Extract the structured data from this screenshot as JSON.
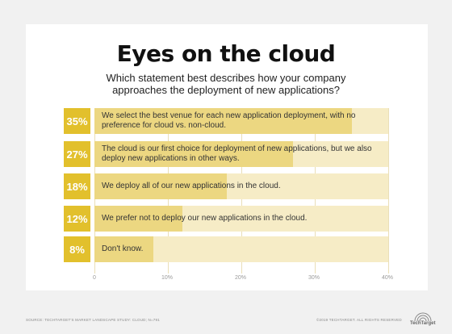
{
  "colors": {
    "accent": "#e2c02c",
    "bar": "#ecd781",
    "track": "#f6ecc6"
  },
  "chart_data": {
    "type": "bar",
    "orientation": "horizontal",
    "title": "Eyes on the cloud",
    "subtitle": "Which statement best describes how your company approaches the deployment of new applications?",
    "categories": [
      "We select the best venue for each new application deployment, with no preference for cloud vs. non-cloud.",
      "The cloud is our first choice for deployment of new applications, but we also deploy new applications in other ways.",
      "We deploy all of our new applications in the cloud.",
      "We prefer not to deploy our new applications in the cloud.",
      "Don't know."
    ],
    "values": [
      35,
      27,
      18,
      12,
      8
    ],
    "value_labels": [
      "35%",
      "27%",
      "18%",
      "12%",
      "8%"
    ],
    "xlim": [
      0,
      40
    ],
    "ticks": [
      "0",
      "10%",
      "20%",
      "30%",
      "40%"
    ],
    "grid": true
  },
  "footer": {
    "source": "SOURCE: TECHTARGET'S MARKET LANDSCAPE STUDY: CLOUD; N=791",
    "copyright": "©2019 TECHTARGET. ALL RIGHTS RESERVED",
    "logo_text": "TechTarget"
  }
}
